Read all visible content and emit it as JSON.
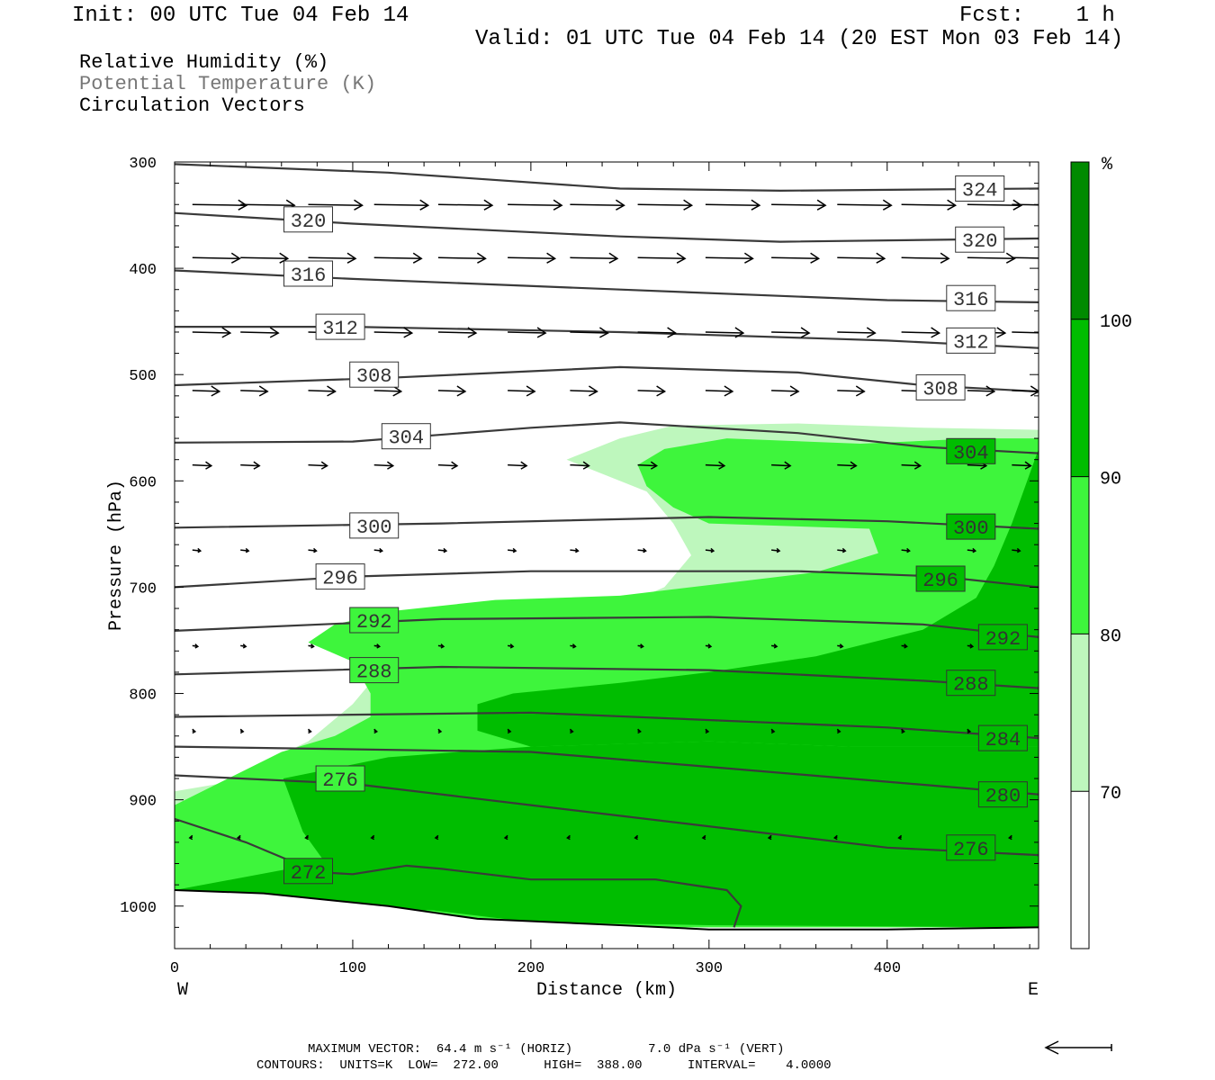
{
  "header": {
    "init": "Init: 00 UTC Tue 04 Feb 14",
    "fcst": "Fcst:    1 h",
    "valid": "Valid: 01 UTC Tue 04 Feb 14 (20 EST Mon 03 Feb 14)",
    "legend": [
      "Relative Humidity (%)",
      "Potential Temperature (K)",
      "Circulation Vectors"
    ]
  },
  "footer": {
    "line1": "MAXIMUM VECTOR:  64.4 m s⁻¹ (HORIZ)          7.0 dPa s⁻¹ (VERT)",
    "line2": "CONTOURS:  UNITS=K  LOW=  272.00      HIGH=  388.00      INTERVAL=    4.0000"
  },
  "colors": {
    "rh_70_80": "#bef7bd",
    "rh_80_90": "#3ef53c",
    "rh_90_100": "#00bd00",
    "rh_100": "#008a00",
    "theta_line": "#3a3a3a"
  },
  "chart_data": {
    "type": "cross-section",
    "xlabel": "Distance (km)",
    "ylabel": "Pressure (hPa)",
    "xlim": [
      0,
      485
    ],
    "ylim": [
      1040,
      300
    ],
    "x_ticks": [
      "0",
      "100",
      "200",
      "300",
      "400"
    ],
    "x_tick_values": [
      0,
      100,
      200,
      300,
      400
    ],
    "y_ticks": [
      "300",
      "400",
      "500",
      "600",
      "700",
      "800",
      "900",
      "1000"
    ],
    "y_tick_values": [
      300,
      400,
      500,
      600,
      700,
      800,
      900,
      1000
    ],
    "west_label": "W",
    "east_label": "E",
    "colorbar": {
      "unit": "%",
      "levels": [
        "70",
        "80",
        "90",
        "100"
      ],
      "level_values": [
        70,
        80,
        90,
        100
      ],
      "colors": [
        "#ffffff",
        "#bef7bd",
        "#3ef53c",
        "#00bd00",
        "#008a00"
      ]
    },
    "theta_contours": [
      {
        "label": "324",
        "points": [
          [
            0,
            302
          ],
          [
            120,
            310
          ],
          [
            250,
            325
          ],
          [
            340,
            327
          ],
          [
            485,
            325
          ]
        ],
        "labels_at": [
          [
            452,
            325
          ]
        ]
      },
      {
        "label": "320",
        "points": [
          [
            0,
            348
          ],
          [
            100,
            358
          ],
          [
            250,
            370
          ],
          [
            340,
            375
          ],
          [
            485,
            372
          ]
        ],
        "labels_at": [
          [
            75,
            354
          ],
          [
            452,
            373
          ]
        ]
      },
      {
        "label": "316",
        "points": [
          [
            0,
            402
          ],
          [
            100,
            410
          ],
          [
            250,
            420
          ],
          [
            400,
            430
          ],
          [
            485,
            432
          ]
        ],
        "labels_at": [
          [
            75,
            405
          ],
          [
            447,
            428
          ]
        ]
      },
      {
        "label": "312",
        "points": [
          [
            0,
            455
          ],
          [
            100,
            455
          ],
          [
            250,
            460
          ],
          [
            400,
            468
          ],
          [
            485,
            475
          ]
        ],
        "labels_at": [
          [
            93,
            455
          ],
          [
            447,
            468
          ]
        ]
      },
      {
        "label": "308",
        "points": [
          [
            0,
            510
          ],
          [
            120,
            503
          ],
          [
            250,
            493
          ],
          [
            350,
            498
          ],
          [
            420,
            510
          ],
          [
            485,
            516
          ]
        ],
        "labels_at": [
          [
            112,
            500
          ],
          [
            430,
            512
          ]
        ]
      },
      {
        "label": "304",
        "points": [
          [
            0,
            564
          ],
          [
            100,
            563
          ],
          [
            200,
            550
          ],
          [
            250,
            545
          ],
          [
            350,
            555
          ],
          [
            420,
            568
          ],
          [
            485,
            574
          ]
        ],
        "labels_at": [
          [
            130,
            558
          ],
          [
            447,
            572
          ]
        ]
      },
      {
        "label": "300",
        "points": [
          [
            0,
            644
          ],
          [
            150,
            640
          ],
          [
            300,
            634
          ],
          [
            400,
            638
          ],
          [
            485,
            645
          ]
        ],
        "labels_at": [
          [
            112,
            642
          ],
          [
            447,
            643
          ]
        ]
      },
      {
        "label": "296",
        "points": [
          [
            0,
            700
          ],
          [
            100,
            690
          ],
          [
            200,
            685
          ],
          [
            350,
            685
          ],
          [
            430,
            690
          ],
          [
            485,
            700
          ]
        ],
        "labels_at": [
          [
            93,
            690
          ],
          [
            430,
            692
          ]
        ]
      },
      {
        "label": "292",
        "points": [
          [
            0,
            741
          ],
          [
            150,
            730
          ],
          [
            300,
            728
          ],
          [
            420,
            735
          ],
          [
            485,
            747
          ]
        ],
        "labels_at": [
          [
            112,
            731
          ],
          [
            465,
            747
          ]
        ]
      },
      {
        "label": "288",
        "points": [
          [
            0,
            782
          ],
          [
            150,
            775
          ],
          [
            300,
            778
          ],
          [
            420,
            788
          ],
          [
            485,
            795
          ]
        ],
        "labels_at": [
          [
            112,
            778
          ],
          [
            447,
            790
          ]
        ]
      },
      {
        "label": "284",
        "points": [
          [
            0,
            822
          ],
          [
            200,
            818
          ],
          [
            400,
            832
          ],
          [
            485,
            842
          ]
        ],
        "labels_at": [
          [
            465,
            842
          ]
        ]
      },
      {
        "label": "280",
        "points": [
          [
            0,
            850
          ],
          [
            200,
            855
          ],
          [
            400,
            883
          ],
          [
            485,
            895
          ]
        ],
        "labels_at": [
          [
            465,
            895
          ]
        ]
      },
      {
        "label": "276",
        "points": [
          [
            0,
            877
          ],
          [
            100,
            885
          ],
          [
            200,
            905
          ],
          [
            400,
            945
          ],
          [
            485,
            952
          ]
        ],
        "labels_at": [
          [
            93,
            880
          ],
          [
            447,
            945
          ]
        ]
      },
      {
        "label": "272",
        "points": [
          [
            0,
            918
          ],
          [
            40,
            940
          ],
          [
            80,
            968
          ],
          [
            100,
            970
          ],
          [
            130,
            962
          ],
          [
            150,
            965
          ],
          [
            200,
            975
          ],
          [
            270,
            975
          ],
          [
            310,
            985
          ],
          [
            318,
            1000
          ],
          [
            314,
            1020
          ]
        ],
        "labels_at": [
          [
            75,
            967
          ]
        ]
      }
    ],
    "rh_regions": [
      {
        "level": 80,
        "polygon": [
          [
            0,
            892
          ],
          [
            25,
            885
          ],
          [
            75,
            845
          ],
          [
            100,
            810
          ],
          [
            110,
            790
          ],
          [
            115,
            775
          ],
          [
            160,
            760
          ],
          [
            200,
            745
          ],
          [
            240,
            725
          ],
          [
            275,
            700
          ],
          [
            290,
            670
          ],
          [
            280,
            640
          ],
          [
            265,
            610
          ],
          [
            220,
            580
          ],
          [
            250,
            560
          ],
          [
            280,
            548
          ],
          [
            350,
            546
          ],
          [
            420,
            550
          ],
          [
            485,
            552
          ],
          [
            485,
            1020
          ],
          [
            0,
            1020
          ]
        ]
      },
      {
        "level": 90,
        "polygon": [
          [
            0,
            905
          ],
          [
            30,
            880
          ],
          [
            60,
            855
          ],
          [
            90,
            840
          ],
          [
            110,
            822
          ],
          [
            110,
            800
          ],
          [
            100,
            770
          ],
          [
            75,
            752
          ],
          [
            90,
            735
          ],
          [
            125,
            722
          ],
          [
            180,
            712
          ],
          [
            250,
            708
          ],
          [
            310,
            696
          ],
          [
            360,
            686
          ],
          [
            395,
            668
          ],
          [
            390,
            645
          ],
          [
            300,
            640
          ],
          [
            280,
            625
          ],
          [
            265,
            605
          ],
          [
            260,
            585
          ],
          [
            275,
            570
          ],
          [
            310,
            560
          ],
          [
            385,
            565
          ],
          [
            450,
            560
          ],
          [
            485,
            560
          ],
          [
            485,
            1020
          ],
          [
            0,
            1020
          ]
        ]
      },
      {
        "level": 100,
        "polygon": [
          [
            0,
            985
          ],
          [
            80,
            960
          ],
          [
            150,
            955
          ],
          [
            200,
            960
          ],
          [
            240,
            965
          ],
          [
            270,
            965
          ],
          [
            290,
            975
          ],
          [
            290,
            990
          ],
          [
            240,
            1000
          ],
          [
            180,
            1002
          ],
          [
            120,
            1005
          ],
          [
            80,
            1000
          ],
          [
            40,
            995
          ],
          [
            0,
            990
          ]
        ]
      },
      {
        "level": 100,
        "polygon": [
          [
            61,
            880
          ],
          [
            120,
            860
          ],
          [
            200,
            850
          ],
          [
            300,
            845
          ],
          [
            380,
            850
          ],
          [
            440,
            850
          ],
          [
            485,
            850
          ],
          [
            485,
            1020
          ],
          [
            300,
            1018
          ],
          [
            200,
            1015
          ],
          [
            100,
            995
          ],
          [
            72,
            930
          ]
        ]
      },
      {
        "level": 100,
        "polygon": [
          [
            190,
            800
          ],
          [
            250,
            790
          ],
          [
            300,
            780
          ],
          [
            360,
            765
          ],
          [
            420,
            740
          ],
          [
            450,
            710
          ],
          [
            460,
            680
          ],
          [
            470,
            640
          ],
          [
            485,
            570
          ],
          [
            485,
            850
          ],
          [
            380,
            850
          ],
          [
            300,
            845
          ],
          [
            200,
            850
          ],
          [
            170,
            835
          ],
          [
            170,
            810
          ]
        ]
      }
    ],
    "rh_overlays": [
      {
        "level": 100,
        "polygon": [
          [
            410,
            760
          ],
          [
            440,
            740
          ],
          [
            465,
            700
          ],
          [
            478,
            655
          ],
          [
            485,
            620
          ],
          [
            485,
            850
          ],
          [
            440,
            850
          ],
          [
            400,
            845
          ]
        ]
      }
    ],
    "terrain": {
      "polygon": [
        [
          0,
          985
        ],
        [
          50,
          988
        ],
        [
          120,
          1000
        ],
        [
          170,
          1012
        ],
        [
          250,
          1018
        ],
        [
          300,
          1022
        ],
        [
          400,
          1022
        ],
        [
          485,
          1020
        ],
        [
          485,
          1040
        ],
        [
          0,
          1040
        ]
      ],
      "line": [
        [
          0,
          985
        ],
        [
          50,
          988
        ],
        [
          120,
          1000
        ],
        [
          170,
          1012
        ],
        [
          250,
          1018
        ],
        [
          300,
          1022
        ],
        [
          400,
          1022
        ],
        [
          485,
          1020
        ]
      ]
    },
    "vectors": {
      "x": [
        10,
        37,
        75,
        112,
        148,
        187,
        222,
        260,
        298,
        335,
        372,
        408,
        445,
        470
      ],
      "rows": [
        {
          "p": 340,
          "u": [
            40,
            40,
            40,
            40,
            40,
            40,
            40,
            40,
            40,
            40,
            40,
            40,
            40,
            40
          ]
        },
        {
          "p": 390,
          "u": [
            35,
            35,
            35,
            35,
            35,
            35,
            35,
            35,
            35,
            35,
            35,
            35,
            35,
            35
          ]
        },
        {
          "p": 460,
          "u": [
            28,
            28,
            28,
            28,
            28,
            28,
            28,
            28,
            28,
            28,
            28,
            28,
            28,
            28
          ]
        },
        {
          "p": 515,
          "u": [
            20,
            20,
            20,
            20,
            20,
            20,
            20,
            20,
            20,
            20,
            20,
            20,
            20,
            20
          ]
        },
        {
          "p": 585,
          "u": [
            14,
            14,
            14,
            14,
            14,
            14,
            14,
            14,
            14,
            14,
            14,
            14,
            14,
            14
          ]
        },
        {
          "p": 665,
          "u": [
            6,
            6,
            6,
            6,
            6,
            6,
            6,
            6,
            6,
            6,
            6,
            6,
            6,
            6
          ]
        },
        {
          "p": 755,
          "u": [
            4,
            4,
            4,
            4,
            4,
            4,
            4,
            4,
            4,
            4,
            4,
            4,
            4,
            4
          ]
        },
        {
          "p": 835,
          "u": [
            2,
            2,
            2,
            2,
            2,
            2,
            2,
            2,
            2,
            2,
            2,
            2,
            2,
            2
          ]
        },
        {
          "p": 935,
          "u": [
            -2,
            -2,
            -2,
            -2,
            -2,
            -2,
            -2,
            -2,
            -2,
            -2,
            -2,
            -2,
            -2,
            -2
          ]
        }
      ]
    }
  }
}
